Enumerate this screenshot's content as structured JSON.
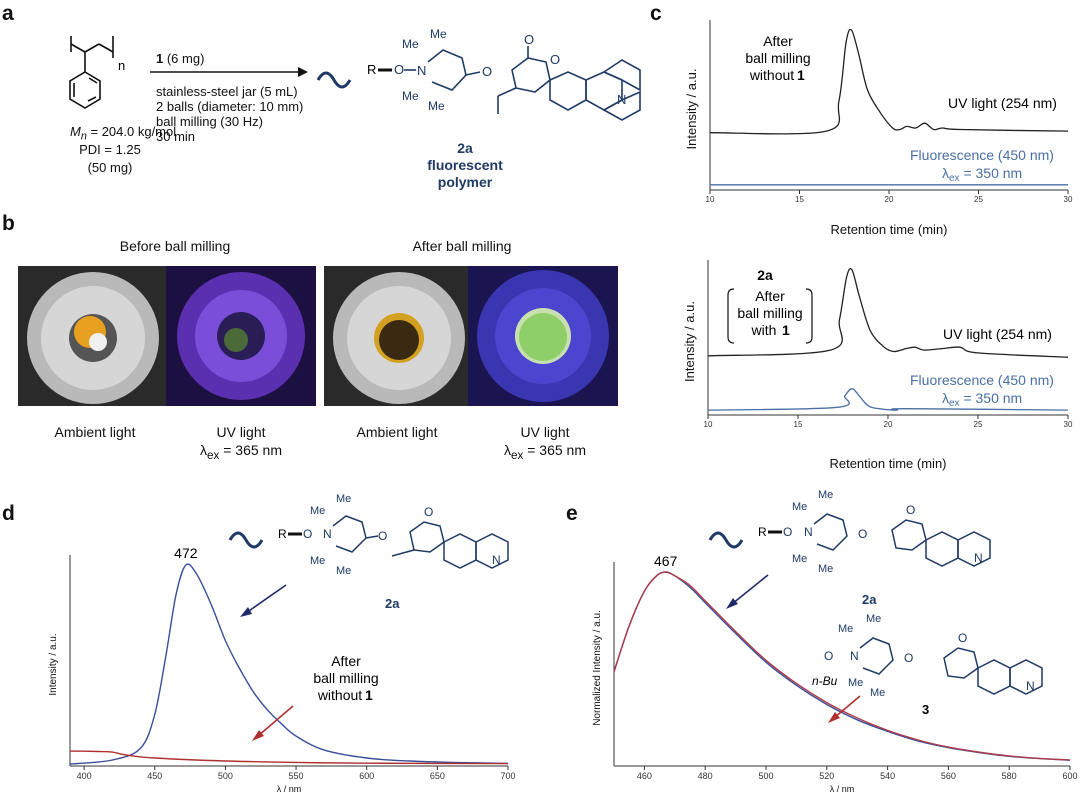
{
  "panels": {
    "a": {
      "label": "a",
      "subscript_n": "n",
      "mn": "M",
      "mn_sub": "n",
      "mn_value": " = 204.0 kg/mol",
      "pdi": "PDI = 1.25",
      "mass": "(50 mg)",
      "cond_bold": "1",
      "cond_mass": " (6 mg)",
      "cond_lines": [
        "stainless-steel jar (5 mL)",
        "2 balls (diameter: 10 mm)",
        "ball milling (30 Hz)",
        "30 min"
      ],
      "product_id": "2a",
      "product_desc1": "fluorescent",
      "product_desc2": "polymer"
    },
    "b": {
      "label": "b",
      "before_title": "Before ball milling",
      "after_title": "After ball milling",
      "cap1": "Ambient light",
      "cap2a": "UV light",
      "cap2b_pre": "λ",
      "cap2b_sub": "ex",
      "cap2b_post": " = 365 nm",
      "cap3": "Ambient light",
      "cap4a": "UV light",
      "cap4b_pre": "λ",
      "cap4b_sub": "ex",
      "cap4b_post": " = 365 nm"
    },
    "c": {
      "label": "c"
    },
    "d": {
      "label": "d"
    },
    "e": {
      "label": "e"
    }
  },
  "chem": {
    "R": "R",
    "O": "O",
    "N": "N",
    "Me": "Me",
    "nBu": "n-Bu",
    "cmpd_2a": "2a",
    "cmpd_3": "3"
  },
  "chart_data": [
    {
      "id": "c-top",
      "type": "line",
      "xlabel": "Retention time (min)",
      "ylabel": "Intensity / a.u.",
      "xlim": [
        10,
        30
      ],
      "xticks": [
        10,
        15,
        20,
        25,
        30
      ],
      "annotation": [
        "After",
        "ball milling",
        "without"
      ],
      "annotation_bold": "1",
      "series": [
        {
          "name": "UV light  (254 nm)",
          "color": "#222222",
          "x": [
            10,
            16.5,
            17.2,
            17.6,
            17.9,
            18.3,
            18.8,
            19.5,
            20.2,
            20.6,
            21,
            21.5,
            22,
            22.5,
            23,
            24,
            30
          ],
          "y": [
            0.35,
            0.36,
            0.55,
            0.92,
            1.0,
            0.85,
            0.62,
            0.48,
            0.38,
            0.37,
            0.39,
            0.38,
            0.41,
            0.37,
            0.38,
            0.37,
            0.36
          ]
        },
        {
          "name": "Fluorescence (450 nm)",
          "sub_label_pre": "λ",
          "sub_label_sub": "ex",
          "sub_label_post": " = 350 nm",
          "color": "#4a6fa5",
          "x": [
            10,
            30
          ],
          "y": [
            0.02,
            0.02
          ]
        }
      ]
    },
    {
      "id": "c-bottom",
      "type": "line",
      "xlabel": "Retention time (min)",
      "ylabel": "Intensity / a.u.",
      "xlim": [
        10,
        30
      ],
      "xticks": [
        10,
        15,
        20,
        25,
        30
      ],
      "annotation_top": "2a",
      "annotation": [
        "After",
        "ball milling",
        "with"
      ],
      "annotation_bold": "1",
      "series": [
        {
          "name": "UV light  (254 nm)",
          "color": "#222222",
          "x": [
            10,
            16.8,
            17.3,
            17.7,
            18.0,
            18.4,
            19.0,
            19.7,
            20.3,
            21,
            21.5,
            22,
            23,
            24,
            25,
            30
          ],
          "y": [
            0.4,
            0.44,
            0.65,
            0.95,
            1.0,
            0.82,
            0.58,
            0.47,
            0.43,
            0.45,
            0.46,
            0.44,
            0.45,
            0.46,
            0.42,
            0.39
          ]
        },
        {
          "name": "Fluorescence (450 nm)",
          "sub_label_pre": "λ",
          "sub_label_sub": "ex",
          "sub_label_post": " = 350 nm",
          "color": "#4a6fa5",
          "x": [
            10,
            17.2,
            17.6,
            18.0,
            18.4,
            18.9,
            19.5,
            20.5,
            21,
            30
          ],
          "y": [
            0.02,
            0.04,
            0.12,
            0.17,
            0.12,
            0.05,
            0.03,
            0.02,
            0.03,
            0.02
          ]
        }
      ]
    },
    {
      "id": "d",
      "type": "line",
      "xlabel": "λ / nm",
      "ylabel": "Intensity / a.u.",
      "xlim": [
        390,
        700
      ],
      "xticks": [
        400,
        450,
        500,
        550,
        600,
        650,
        700
      ],
      "peak_label": "472",
      "annotation": [
        "After",
        "ball milling",
        "without"
      ],
      "annotation_bold": "1",
      "series": [
        {
          "name": "2a",
          "color": "#3a4e9a",
          "x": [
            390,
            420,
            440,
            450,
            458,
            465,
            472,
            480,
            490,
            500,
            510,
            520,
            530,
            540,
            550,
            570,
            600,
            630,
            660,
            700
          ],
          "y": [
            0.0,
            0.02,
            0.08,
            0.25,
            0.55,
            0.85,
            1.0,
            0.95,
            0.8,
            0.62,
            0.48,
            0.36,
            0.27,
            0.2,
            0.14,
            0.07,
            0.03,
            0.015,
            0.008,
            0.003
          ]
        },
        {
          "name": "After ball milling without 1",
          "color": "#b03030",
          "x": [
            390,
            410,
            420,
            430,
            450,
            500,
            550,
            600,
            700
          ],
          "y": [
            0.065,
            0.063,
            0.06,
            0.045,
            0.03,
            0.015,
            0.008,
            0.004,
            0.002
          ]
        }
      ]
    },
    {
      "id": "e",
      "type": "line",
      "xlabel": "λ / nm",
      "ylabel": "Normalized Intensity / a.u.",
      "xlim": [
        450,
        600
      ],
      "xticks": [
        460,
        480,
        500,
        520,
        540,
        560,
        580,
        600
      ],
      "peak_label": "467",
      "series": [
        {
          "name": "2a",
          "color": "#3a4e9a",
          "x": [
            450,
            455,
            460,
            464,
            467,
            470,
            475,
            480,
            490,
            500,
            510,
            520,
            530,
            540,
            550,
            560,
            570,
            580,
            590,
            600
          ],
          "y": [
            0.48,
            0.72,
            0.9,
            0.98,
            1.0,
            0.98,
            0.92,
            0.84,
            0.68,
            0.53,
            0.41,
            0.31,
            0.23,
            0.17,
            0.12,
            0.085,
            0.06,
            0.04,
            0.028,
            0.02
          ]
        },
        {
          "name": "3",
          "color": "#b03a4a",
          "x": [
            450,
            455,
            460,
            464,
            467,
            470,
            475,
            480,
            490,
            500,
            510,
            520,
            530,
            540,
            550,
            560,
            570,
            580,
            590,
            600
          ],
          "y": [
            0.48,
            0.72,
            0.9,
            0.98,
            1.0,
            0.98,
            0.93,
            0.85,
            0.69,
            0.54,
            0.42,
            0.32,
            0.24,
            0.175,
            0.125,
            0.088,
            0.062,
            0.042,
            0.029,
            0.021
          ]
        }
      ]
    }
  ]
}
